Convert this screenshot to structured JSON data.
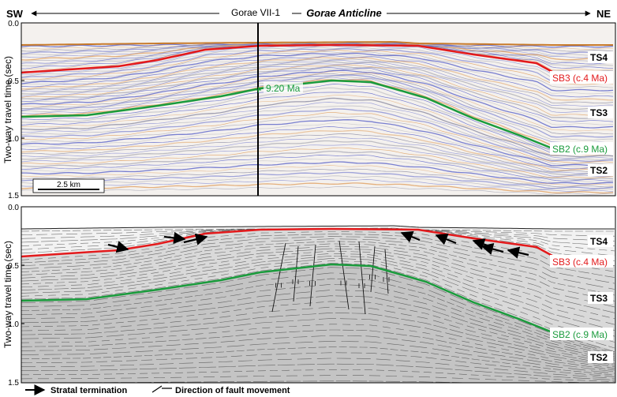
{
  "header": {
    "left_dir": "SW",
    "right_dir": "NE",
    "well": "Gorae VII-1",
    "structure": "Gorae Anticline"
  },
  "axis": {
    "ylabel": "Two-way travel time (sec)",
    "ticks": [
      "0.0",
      "0.5",
      "1.0",
      "1.5"
    ]
  },
  "top_panel": {
    "scale_bar": "2.5 km",
    "age_marker": "9.20 Ma",
    "units": {
      "ts4": "TS4",
      "ts3": "TS3",
      "ts2": "TS2"
    },
    "horizons": {
      "sb3": "SB3 (c.4 Ma)",
      "sb2": "SB2 (c.9 Ma)"
    }
  },
  "bottom_panel": {
    "units": {
      "ts4": "TS4",
      "ts3": "TS3",
      "ts2": "TS2"
    },
    "horizons": {
      "sb3": "SB3 (c.4 Ma)",
      "sb2": "SB2 (c.9 Ma)"
    }
  },
  "legend": {
    "stratal": "Stratal termination",
    "fault": "Direction of fault movement"
  },
  "colors": {
    "sb3": "#e31a1c",
    "sb2": "#1a9b3c",
    "seismic_blue": "#5a63c8",
    "seismic_orange": "#e0a060",
    "ts4_fill": "#f2f2f2",
    "ts3_fill": "#d9d9d9",
    "ts2_fill": "#c4c4c4"
  }
}
